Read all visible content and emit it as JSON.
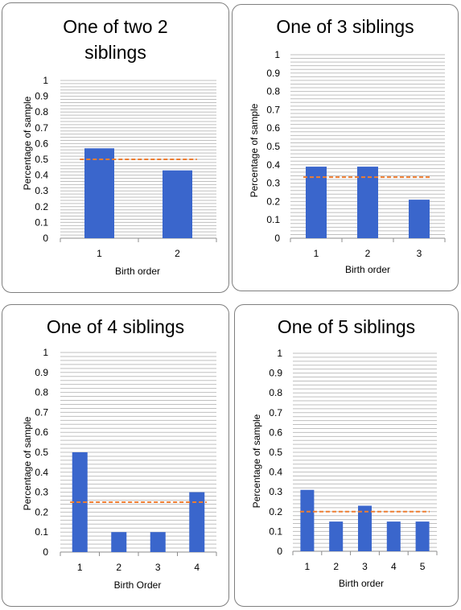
{
  "colors": {
    "bar": "#3a66cc",
    "reference_line": "#ed7d31",
    "grid": "#bfbfbf",
    "axis": "#8c8c8c",
    "border": "#7f7f7f"
  },
  "panels": [
    {
      "title_lines": [
        "One of two 2",
        "siblings"
      ],
      "xlabel": "Birth order",
      "ylabel": "Percentage of sample"
    },
    {
      "title_lines": [
        "One of 3 siblings"
      ],
      "xlabel": "Birth order",
      "ylabel": "Percentage of sample"
    },
    {
      "title_lines": [
        "One of 4 siblings"
      ],
      "xlabel": "Birth Order",
      "ylabel": "Percentage of sample"
    },
    {
      "title_lines": [
        "One of 5 siblings"
      ],
      "xlabel": "Birth order",
      "ylabel": "Percentage of sample"
    }
  ],
  "chart_data": [
    {
      "type": "bar",
      "title": "One of two 2 siblings",
      "categories": [
        "1",
        "2"
      ],
      "values": [
        0.57,
        0.43
      ],
      "reference_value": 0.5,
      "xlabel": "Birth order",
      "ylabel": "Percentage of sample",
      "ylim": [
        0,
        1
      ],
      "yticks": [
        "0",
        "0.1",
        "0.2",
        "0.3",
        "0.4",
        "0.5",
        "0.6",
        "0.7",
        "0.8",
        "0.9",
        "1"
      ],
      "grid": true
    },
    {
      "type": "bar",
      "title": "One of 3 siblings",
      "categories": [
        "1",
        "2",
        "3"
      ],
      "values": [
        0.39,
        0.39,
        0.21
      ],
      "reference_value": 0.333,
      "xlabel": "Birth order",
      "ylabel": "Percentage of sample",
      "ylim": [
        0,
        1
      ],
      "yticks": [
        "0",
        "0.1",
        "0.2",
        "0.3",
        "0.4",
        "0.5",
        "0.6",
        "0.7",
        "0.8",
        "0.9",
        "1"
      ],
      "grid": true
    },
    {
      "type": "bar",
      "title": "One of 4 siblings",
      "categories": [
        "1",
        "2",
        "3",
        "4"
      ],
      "values": [
        0.5,
        0.1,
        0.1,
        0.3
      ],
      "reference_value": 0.25,
      "xlabel": "Birth Order",
      "ylabel": "Percentage of sample",
      "ylim": [
        0,
        1
      ],
      "yticks": [
        "0",
        "0.1",
        "0.2",
        "0.3",
        "0.4",
        "0.5",
        "0.6",
        "0.7",
        "0.8",
        "0.9",
        "1"
      ],
      "grid": true
    },
    {
      "type": "bar",
      "title": "One of 5 siblings",
      "categories": [
        "1",
        "2",
        "3",
        "4",
        "5"
      ],
      "values": [
        0.31,
        0.15,
        0.23,
        0.15,
        0.15
      ],
      "reference_value": 0.2,
      "xlabel": "Birth order",
      "ylabel": "Percentage of sample",
      "ylim": [
        0,
        1
      ],
      "yticks": [
        "0",
        "0.1",
        "0.2",
        "0.3",
        "0.4",
        "0.5",
        "0.6",
        "0.7",
        "0.8",
        "0.9",
        "1"
      ],
      "grid": true
    }
  ]
}
